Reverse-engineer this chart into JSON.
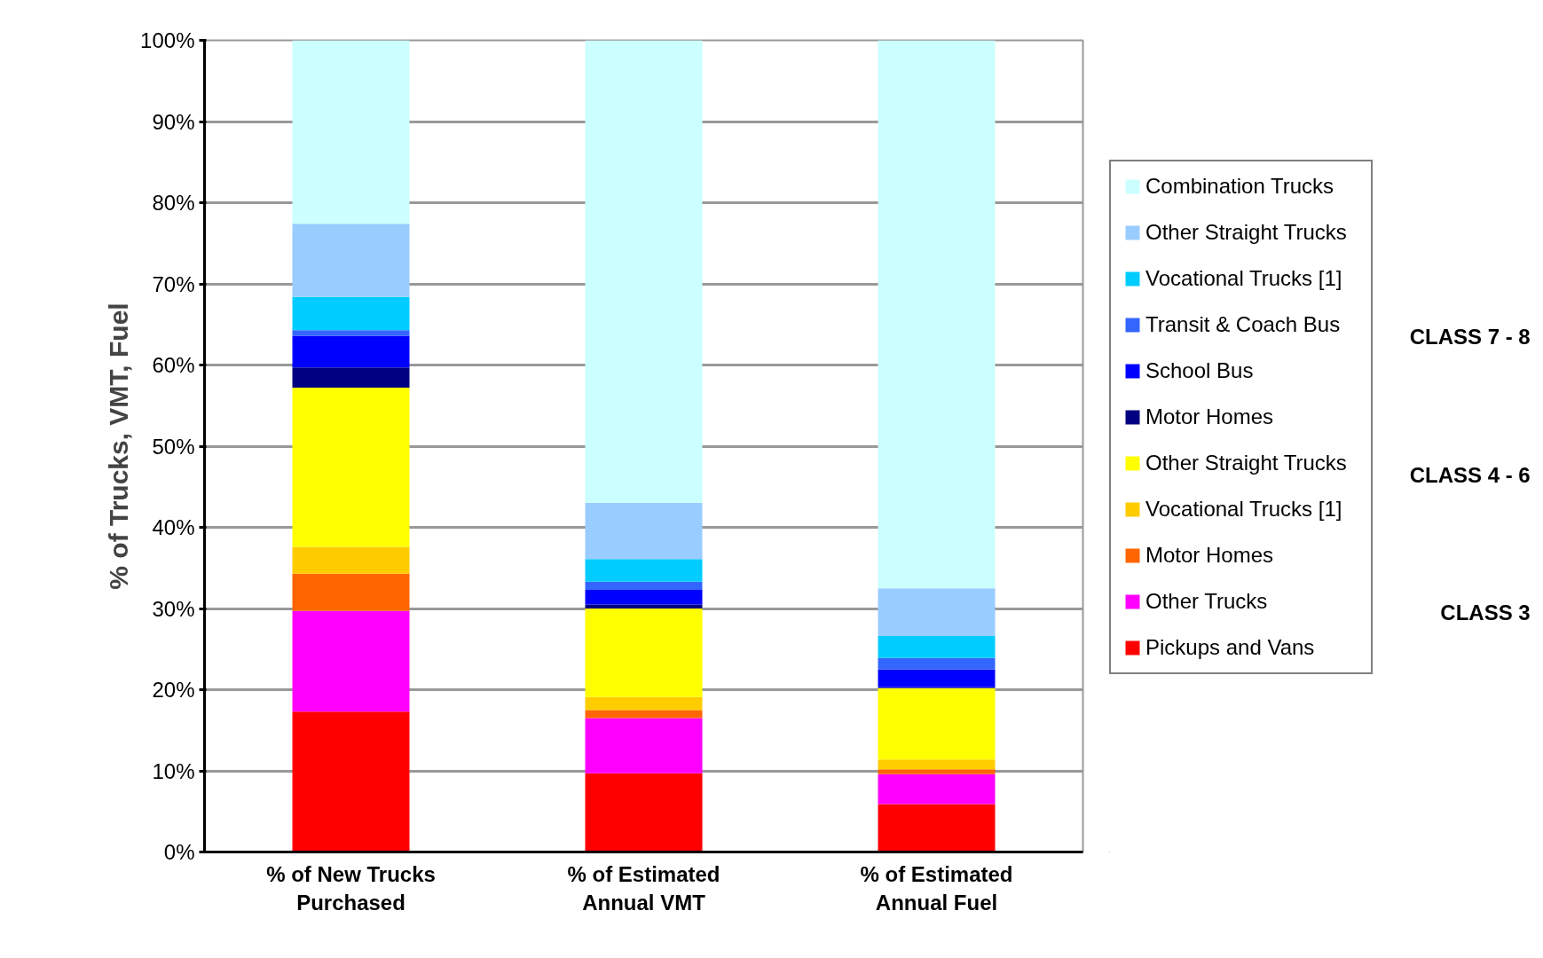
{
  "chart_data": {
    "type": "bar",
    "stacked": true,
    "ylabel": "% of Trucks, VMT, Fuel",
    "categories": [
      "% of New Trucks Purchased",
      "% of Estimated Annual VMT",
      "% of Estimated Annual Fuel"
    ],
    "series": [
      {
        "name": "Pickups and Vans",
        "color": "#ff0000",
        "values": [
          17.3,
          9.7,
          5.9
        ]
      },
      {
        "name": "Other Trucks",
        "color": "#ff00ff",
        "values": [
          12.4,
          6.8,
          3.7
        ]
      },
      {
        "name": "Motor Homes",
        "color": "#ff6600",
        "values": [
          4.6,
          1.0,
          0.6
        ]
      },
      {
        "name": "Vocational Trucks [1]",
        "color": "#ffcc00",
        "values": [
          3.3,
          1.6,
          1.2
        ]
      },
      {
        "name": "Other Straight Trucks",
        "color": "#ffff00",
        "values": [
          19.6,
          10.9,
          8.8
        ]
      },
      {
        "name": "Motor Homes",
        "color": "#000080",
        "values": [
          2.5,
          0.5,
          0.1
        ]
      },
      {
        "name": "School Bus",
        "color": "#0000ff",
        "values": [
          3.9,
          1.8,
          2.2
        ]
      },
      {
        "name": "Transit & Coach Bus",
        "color": "#3366ff",
        "values": [
          0.7,
          1.0,
          1.4
        ]
      },
      {
        "name": "Vocational Trucks [1]",
        "color": "#00ccff",
        "values": [
          4.1,
          2.8,
          2.7
        ]
      },
      {
        "name": "Other Straight Trucks",
        "color": "#99ccff",
        "values": [
          9.0,
          6.9,
          5.9
        ]
      },
      {
        "name": "Combination Trucks",
        "color": "#ccffff",
        "values": [
          22.6,
          57.0,
          67.5
        ]
      }
    ],
    "annotations": [
      "CLASS 7 - 8",
      "CLASS 4 - 6",
      "CLASS 3"
    ],
    "ylim": [
      0,
      100
    ],
    "yticks": [
      {
        "value": 0,
        "label": "0%"
      },
      {
        "value": 10,
        "label": "10%"
      },
      {
        "value": 20,
        "label": "20%"
      },
      {
        "value": 30,
        "label": "30%"
      },
      {
        "value": 40,
        "label": "40%"
      },
      {
        "value": 50,
        "label": "50%"
      },
      {
        "value": 60,
        "label": "60%"
      },
      {
        "value": 70,
        "label": "70%"
      },
      {
        "value": 80,
        "label": "80%"
      },
      {
        "value": 90,
        "label": "90%"
      },
      {
        "value": 100,
        "label": "100%"
      }
    ],
    "grid": "y",
    "legend": "right"
  }
}
